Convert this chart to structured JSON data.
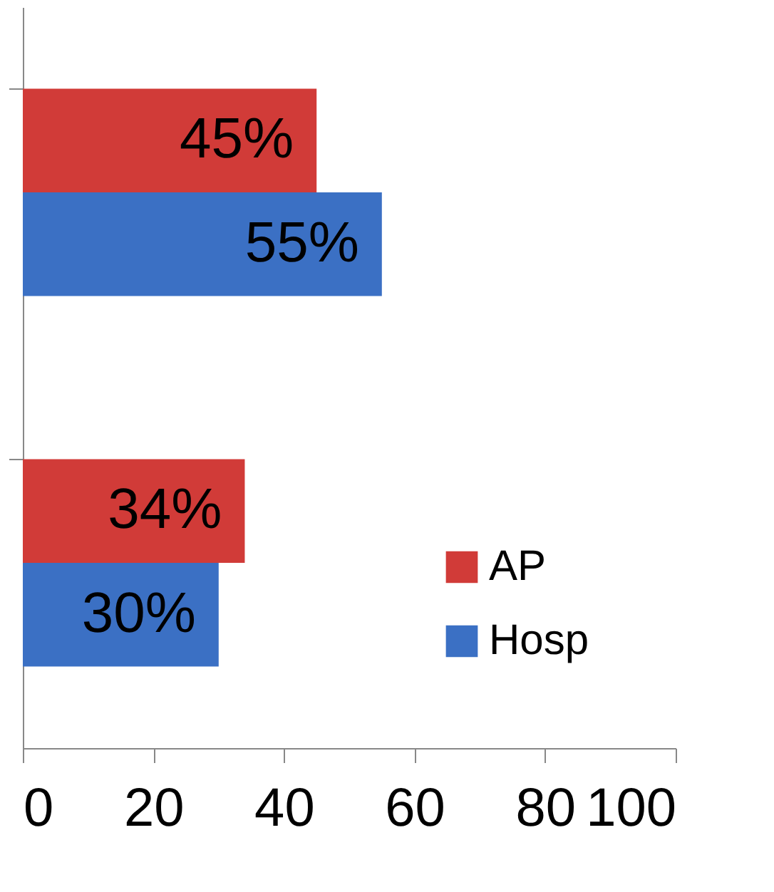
{
  "chart_data": {
    "type": "bar",
    "orientation": "horizontal",
    "categories": [
      null,
      null
    ],
    "series": [
      {
        "name": "AP",
        "color": "#d13b38",
        "values": [
          45,
          34
        ],
        "value_labels": [
          "45%",
          "34%"
        ]
      },
      {
        "name": "Hosp",
        "color": "#3b70c4",
        "values": [
          55,
          30
        ],
        "value_labels": [
          "55%",
          "30%"
        ]
      }
    ],
    "xlim": [
      0,
      100
    ],
    "xticks": [
      0,
      20,
      40,
      60,
      80,
      100
    ],
    "grid": false,
    "legend": "bottom right",
    "tick_labels": "x"
  }
}
